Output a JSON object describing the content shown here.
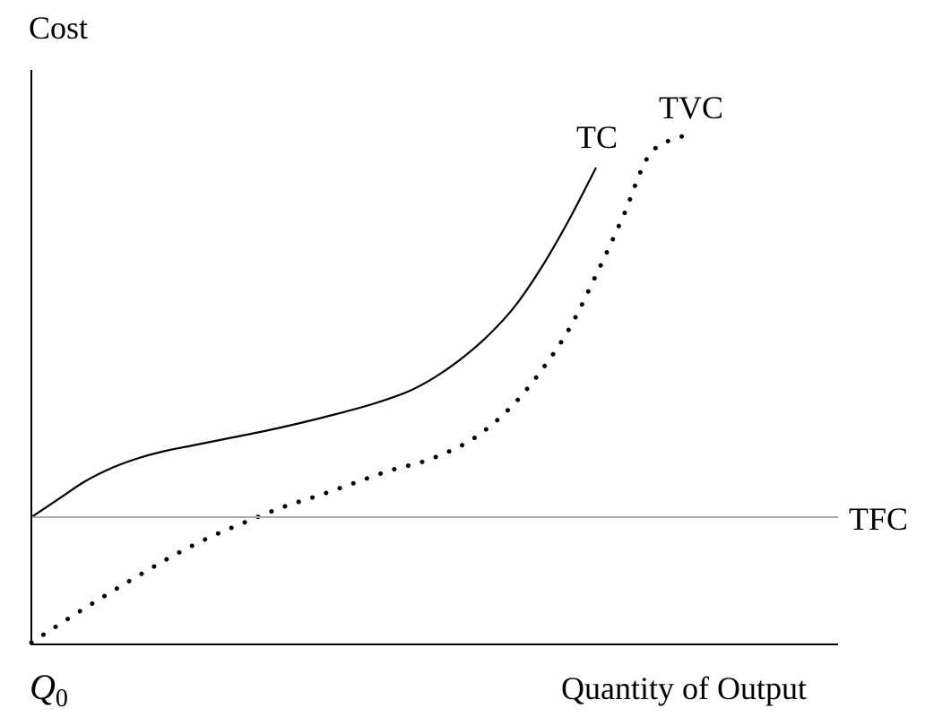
{
  "chart_data": {
    "type": "line",
    "title": "",
    "ylabel": "Cost",
    "xlabel": "Quantity of Output",
    "origin_label": {
      "main": "Q",
      "sub": "0"
    },
    "grid": false,
    "axis_ticks": false,
    "series": [
      {
        "name": "TC",
        "style": "solid",
        "color": "#000000",
        "points": [
          [
            0,
            0
          ],
          [
            30,
            20
          ],
          [
            60,
            40
          ],
          [
            90,
            55
          ],
          [
            120,
            66
          ],
          [
            150,
            74
          ],
          [
            180,
            80
          ],
          [
            220,
            88
          ],
          [
            260,
            96
          ],
          [
            300,
            105
          ],
          [
            340,
            115
          ],
          [
            380,
            126
          ],
          [
            420,
            140
          ],
          [
            450,
            156
          ],
          [
            480,
            177
          ],
          [
            510,
            203
          ],
          [
            540,
            236
          ],
          [
            570,
            280
          ],
          [
            600,
            332
          ],
          [
            630,
            390
          ]
        ]
      },
      {
        "name": "TVC",
        "style": "dotted",
        "color": "#000000",
        "points": [
          [
            0,
            -140
          ],
          [
            40,
            -114
          ],
          [
            80,
            -89
          ],
          [
            120,
            -65
          ],
          [
            160,
            -42
          ],
          [
            200,
            -22
          ],
          [
            240,
            -5
          ],
          [
            280,
            11
          ],
          [
            320,
            24
          ],
          [
            360,
            38
          ],
          [
            400,
            52
          ],
          [
            440,
            63
          ],
          [
            480,
            80
          ],
          [
            510,
            100
          ],
          [
            540,
            128
          ],
          [
            570,
            165
          ],
          [
            600,
            210
          ],
          [
            630,
            270
          ],
          [
            660,
            335
          ],
          [
            690,
            405
          ],
          [
            726,
            425
          ]
        ]
      },
      {
        "name": "TFC",
        "style": "solid",
        "color": "#aaaaaa",
        "points": [
          [
            0,
            0
          ],
          [
            900,
            0
          ]
        ]
      }
    ]
  }
}
